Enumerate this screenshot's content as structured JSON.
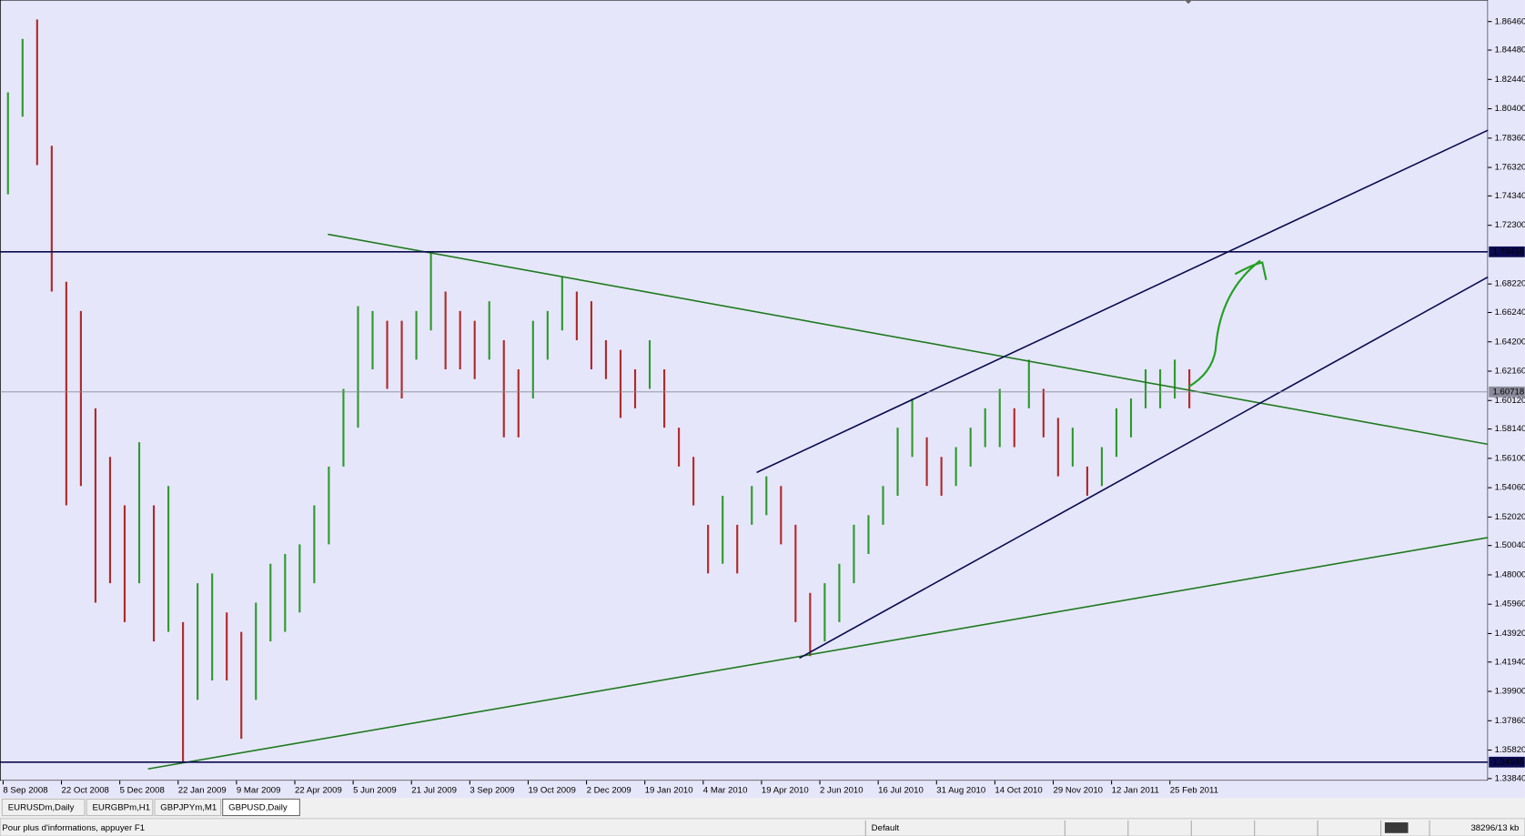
{
  "chart_data": {
    "type": "range-bar",
    "categories": [
      "8 Sep 2008",
      null,
      null,
      null,
      "22 Oct 2008",
      null,
      null,
      null,
      "5 Dec 2008",
      null,
      null,
      null,
      "22 Jan 2009",
      null,
      null,
      null,
      "9 Mar 2009",
      null,
      null,
      null,
      "22 Apr 2009",
      null,
      null,
      null,
      "5 Jun 2009",
      null,
      null,
      null,
      "21 Jul 2009",
      null,
      null,
      null,
      "3 Sep 2009",
      null,
      null,
      null,
      "19 Oct 2009",
      null,
      null,
      null,
      "2 Dec 2009",
      null,
      null,
      null,
      "19 Jan 2010",
      null,
      null,
      null,
      "4 Mar 2010",
      null,
      null,
      null,
      "19 Apr 2010",
      null,
      null,
      null,
      "2 Jun 2010",
      null,
      null,
      null,
      "16 Jul 2010",
      null,
      null,
      null,
      "31 Aug 2010",
      null,
      null,
      null,
      "14 Oct 2010",
      null,
      null,
      null,
      "29 Nov 2010",
      null,
      null,
      null,
      "12 Jan 2011",
      null,
      null,
      null,
      "25 Feb 2011",
      null
    ],
    "series": [
      {
        "name": "High",
        "values": [
          1.8154,
          1.8526,
          1.8661,
          1.7783,
          1.6837,
          1.6634,
          1.5958,
          1.562,
          1.5283,
          1.5722,
          1.5283,
          1.5418,
          1.4472,
          1.4742,
          1.481,
          1.4539,
          1.4404,
          1.4607,
          1.4877,
          1.4945,
          1.5012,
          1.5283,
          1.5553,
          1.6093,
          1.6668,
          1.6634,
          1.6566,
          1.6566,
          1.6634,
          1.7039,
          1.6769,
          1.6634,
          1.6566,
          1.6702,
          1.6431,
          1.6229,
          1.6566,
          1.6634,
          1.687,
          1.6769,
          1.6702,
          1.6431,
          1.6364,
          1.6229,
          1.6431,
          1.6229,
          1.5823,
          1.562,
          1.5148,
          1.535,
          1.5148,
          1.5418,
          1.5485,
          1.5418,
          1.5148,
          1.4675,
          1.4742,
          1.4877,
          1.5148,
          1.5215,
          1.5418,
          1.5823,
          1.6026,
          1.5756,
          1.562,
          1.5688,
          1.5823,
          1.5958,
          1.6093,
          1.5958,
          1.6296,
          1.6093,
          1.5891,
          1.5823,
          1.5553,
          1.5688,
          1.5958,
          1.6026,
          1.6229,
          1.6229,
          1.6296,
          1.6229
        ]
      },
      {
        "name": "Low",
        "values": [
          1.7445,
          1.7985,
          1.7648,
          1.6769,
          1.5283,
          1.5418,
          1.4607,
          1.4742,
          1.4472,
          1.4742,
          1.4337,
          1.4404,
          1.3492,
          1.3931,
          1.4066,
          1.4066,
          1.3661,
          1.3931,
          1.4337,
          1.4404,
          1.4539,
          1.4742,
          1.5012,
          1.5553,
          1.5823,
          1.6229,
          1.6093,
          1.6026,
          1.6296,
          1.6499,
          1.6229,
          1.6229,
          1.6161,
          1.6296,
          1.5756,
          1.5756,
          1.6026,
          1.6296,
          1.6499,
          1.6431,
          1.6229,
          1.6161,
          1.5891,
          1.5958,
          1.6093,
          1.5823,
          1.5553,
          1.5283,
          1.481,
          1.4877,
          1.481,
          1.5148,
          1.5215,
          1.5012,
          1.4472,
          1.4235,
          1.4337,
          1.4472,
          1.4742,
          1.4945,
          1.5148,
          1.535,
          1.562,
          1.5418,
          1.535,
          1.5418,
          1.5553,
          1.5688,
          1.5688,
          1.5688,
          1.5958,
          1.5756,
          1.5485,
          1.5553,
          1.535,
          1.5418,
          1.562,
          1.5756,
          1.5958,
          1.5958,
          1.6026,
          1.5958
        ]
      }
    ],
    "up_color": "#2e9a2e",
    "down_color": "#b02a2a",
    "ylim": [
      1.337,
      1.8796
    ],
    "yticks": [
      {
        "value": 1.3384,
        "label": "1.33840"
      },
      {
        "value": 1.3582,
        "label": "1.35820"
      },
      {
        "value": 1.3786,
        "label": "1.37860"
      },
      {
        "value": 1.399,
        "label": "1.39900"
      },
      {
        "value": 1.4194,
        "label": "1.41940"
      },
      {
        "value": 1.4392,
        "label": "1.43920"
      },
      {
        "value": 1.4596,
        "label": "1.45960"
      },
      {
        "value": 1.48,
        "label": "1.48000"
      },
      {
        "value": 1.5004,
        "label": "1.50040"
      },
      {
        "value": 1.5202,
        "label": "1.52020"
      },
      {
        "value": 1.5406,
        "label": "1.54060"
      },
      {
        "value": 1.561,
        "label": "1.56100"
      },
      {
        "value": 1.5814,
        "label": "1.58140"
      },
      {
        "value": 1.6012,
        "label": "1.60120"
      },
      {
        "value": 1.6216,
        "label": "1.62160"
      },
      {
        "value": 1.642,
        "label": "1.64200"
      },
      {
        "value": 1.6624,
        "label": "1.66240"
      },
      {
        "value": 1.6822,
        "label": "1.68220"
      },
      {
        "value": 1.723,
        "label": "1.72300"
      },
      {
        "value": 1.7434,
        "label": "1.74340"
      },
      {
        "value": 1.7632,
        "label": "1.76320"
      },
      {
        "value": 1.7836,
        "label": "1.78360"
      },
      {
        "value": 1.804,
        "label": "1.80400"
      },
      {
        "value": 1.8244,
        "label": "1.82440"
      },
      {
        "value": 1.8448,
        "label": "1.84480"
      },
      {
        "value": 1.8646,
        "label": "1.86460"
      }
    ],
    "levels": [
      {
        "value": 1.70456,
        "color": "#0a0a50"
      },
      {
        "value": 1.34985,
        "color": "#0a0a50"
      },
      {
        "value": 1.60718,
        "color": "#8a8a9a"
      }
    ]
  },
  "ui": {
    "tabs": [
      "EURUSDm,Daily",
      "EURGBPm,H1",
      "GBPJPYm,M1",
      "GBPUSD,Daily"
    ],
    "status": {
      "help": "Pour plus d'informations, appuyer F1",
      "profile": "Default",
      "traffic": "38296/13 kb"
    }
  }
}
